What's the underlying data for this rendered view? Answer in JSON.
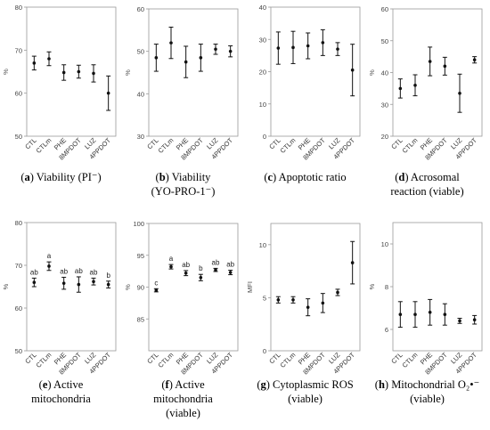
{
  "chart_data": [
    {
      "type": "scatter",
      "panel_letter": "a",
      "caption_lines": [
        "Viability (PI⁻)"
      ],
      "ylabel": "%",
      "ylim": [
        50,
        80
      ],
      "yticks": [
        50,
        60,
        70,
        80
      ],
      "categories": [
        "CTL",
        "CTLm",
        "PHE",
        "8MPDOT",
        "LUZ",
        "4PPDOT"
      ],
      "values": [
        67,
        68,
        64.8,
        65,
        64.6,
        60
      ],
      "errors": [
        1.6,
        1.6,
        1.8,
        1.5,
        2.0,
        4.0
      ],
      "annotations": []
    },
    {
      "type": "scatter",
      "panel_letter": "b",
      "caption_lines": [
        "Viability",
        "(YO-PRO-1⁻)"
      ],
      "ylabel": "%",
      "ylim": [
        30,
        60
      ],
      "yticks": [
        30,
        40,
        50,
        60
      ],
      "categories": [
        "CTL",
        "CTLm",
        "PHE",
        "8MPDOT",
        "LUZ",
        "4PPDOT"
      ],
      "values": [
        48.5,
        52,
        47.5,
        48.5,
        50.5,
        50
      ],
      "errors": [
        3.2,
        3.7,
        3.7,
        3.2,
        1.2,
        1.3
      ],
      "annotations": []
    },
    {
      "type": "scatter",
      "panel_letter": "c",
      "caption_lines": [
        "Apoptotic ratio"
      ],
      "ylabel": "",
      "ylim": [
        0,
        40
      ],
      "yticks": [
        0,
        10,
        20,
        30,
        40
      ],
      "categories": [
        "CTL",
        "CTLm",
        "PHE",
        "8MPDOT",
        "LUZ",
        "4PPDOT"
      ],
      "values": [
        27.3,
        27.5,
        28,
        29,
        27,
        20.5
      ],
      "errors": [
        5,
        5,
        4,
        4,
        2,
        8
      ],
      "annotations": []
    },
    {
      "type": "scatter",
      "panel_letter": "d",
      "caption_lines": [
        "Acrosomal",
        "reaction (viable)"
      ],
      "ylabel": "%",
      "ylim": [
        20,
        60
      ],
      "yticks": [
        20,
        30,
        40,
        50,
        60
      ],
      "categories": [
        "CTL",
        "CTLm",
        "PHE",
        "8MPDOT",
        "LUZ",
        "4PPDOT"
      ],
      "values": [
        35,
        36,
        43.5,
        42,
        33.5,
        44
      ],
      "errors": [
        3,
        3.3,
        4.5,
        2.8,
        6,
        1
      ],
      "annotations": []
    },
    {
      "type": "scatter",
      "panel_letter": "e",
      "caption_lines": [
        "Active",
        "mitochondria"
      ],
      "ylabel": "%",
      "ylim": [
        50,
        80
      ],
      "yticks": [
        50,
        60,
        70,
        80
      ],
      "categories": [
        "CTL",
        "CTLm",
        "PHE",
        "8MPDOT",
        "LUZ",
        "4PPDOT"
      ],
      "values": [
        66,
        69.8,
        65.8,
        65.5,
        66.2,
        65.5
      ],
      "errors": [
        1,
        1,
        1.4,
        1.8,
        0.8,
        0.8
      ],
      "annotations": [
        "ab",
        "a",
        "ab",
        "ab",
        "ab",
        "b"
      ]
    },
    {
      "type": "scatter",
      "panel_letter": "f",
      "caption_lines": [
        "Active",
        "mitochondria",
        "(viable)"
      ],
      "ylabel": "%",
      "ylim": [
        80,
        100
      ],
      "yticks": [
        85,
        90,
        95,
        100
      ],
      "categories": [
        "CTL",
        "CTLm",
        "PHE",
        "8MPDOT",
        "LUZ",
        "4PPDOT"
      ],
      "values": [
        89.5,
        93.2,
        92.2,
        91.5,
        92.7,
        92.3
      ],
      "errors": [
        0.25,
        0.35,
        0.4,
        0.5,
        0.25,
        0.35
      ],
      "annotations": [
        "c",
        "a",
        "ab",
        "b",
        "ab",
        "ab"
      ]
    },
    {
      "type": "scatter",
      "panel_letter": "g",
      "caption_lines": [
        "Cytoplasmic ROS",
        "(viable)"
      ],
      "ylabel": "MFI",
      "ylim": [
        0,
        12
      ],
      "yticks": [
        0,
        5,
        10
      ],
      "categories": [
        "CTL",
        "CTLm",
        "PHE",
        "8MPDOT",
        "LUZ",
        "4PPDOT"
      ],
      "values": [
        4.8,
        4.8,
        4.1,
        4.5,
        5.5,
        8.3
      ],
      "errors": [
        0.3,
        0.3,
        0.8,
        0.9,
        0.3,
        2.0
      ],
      "annotations": []
    },
    {
      "type": "scatter",
      "panel_letter": "h",
      "caption_lines": [
        "Mitochondrial O₂•⁻",
        "(viable)"
      ],
      "ylabel": "%",
      "ylim": [
        5,
        11
      ],
      "yticks": [
        6,
        8,
        10
      ],
      "categories": [
        "CTL",
        "CTLm",
        "PHE",
        "8MPDOT",
        "LUZ",
        "4PPDOT"
      ],
      "values": [
        6.7,
        6.7,
        6.8,
        6.7,
        6.4,
        6.45
      ],
      "errors": [
        0.6,
        0.6,
        0.6,
        0.5,
        0.12,
        0.2
      ],
      "annotations": []
    }
  ]
}
